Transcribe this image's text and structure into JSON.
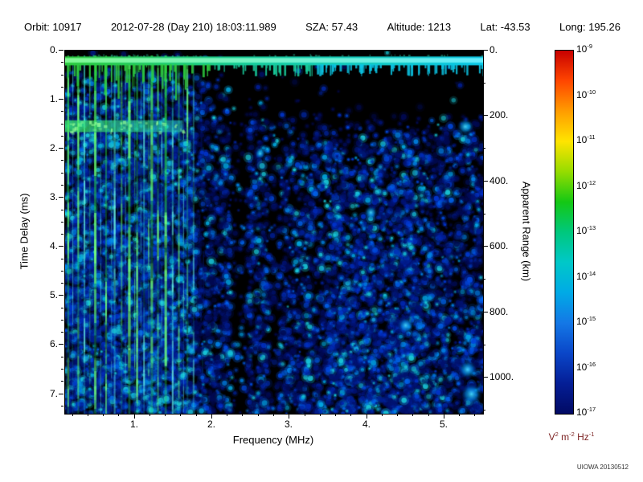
{
  "header": {
    "orbit": "Orbit:  10917",
    "datetime": "2012-07-28 (Day 210) 18:03:11.989",
    "sza": "SZA:  57.43",
    "altitude": "Altitude:   1213",
    "lat": "Lat: -43.53",
    "long": "Long: 195.26"
  },
  "credit": "UIOWA 20130512",
  "chart_data": {
    "type": "heatmap",
    "title": "",
    "description": "Radar sounder ionogram: received spectral density versus sounding frequency and echo time delay. Black background with blue noise speckle that grows denser with delay; bright green/cyan vertical ionospheric echo stripes below ~1.8 MHz; a bright horizontal surface/local-plasma band near 0.2 ms spanning all frequencies with short vertical teeth; a secondary green band near 1.5 ms below ~1.6 MHz; a quiet black region at early delays for frequencies above ~2 MHz.",
    "x_axis": {
      "label": "Frequency (MHz)",
      "min": 0.1,
      "max": 5.5,
      "major_ticks": [
        1,
        2,
        3,
        4,
        5
      ],
      "minor_tick_step": 0.2,
      "tick_suffix": "."
    },
    "y_axis": {
      "label": "Time Delay (ms)",
      "min": 0,
      "max": 7.4,
      "major_ticks": [
        0,
        1,
        2,
        3,
        4,
        5,
        6,
        7
      ],
      "minor_tick_step": 0.25,
      "tick_suffix": "."
    },
    "y2_axis": {
      "label": "Apparent Range (km)",
      "major_ticks": [
        0,
        200,
        400,
        600,
        800,
        1000
      ],
      "minor_tick_step": 100,
      "relation": "range_km = c * delay_ms / 2"
    },
    "colorbar": {
      "exponents": [
        "-9",
        "-10",
        "-11",
        "-12",
        "-13",
        "-14",
        "-15",
        "-16",
        "-17"
      ],
      "unit_parts": [
        {
          "b": "V",
          "e": "2"
        },
        {
          "b": "m",
          "e": "-2"
        },
        {
          "b": "Hz",
          "e": "-1"
        }
      ],
      "stops": [
        "#c80000",
        "#ff4600",
        "#ff9c00",
        "#ffe400",
        "#96dc00",
        "#14c814",
        "#00c87d",
        "#00c8c8",
        "#00aae6",
        "#1478e6",
        "#0a46c8",
        "#041e96",
        "#020a64"
      ]
    },
    "features": {
      "background": "#000000",
      "seed": 20130512,
      "surface_band": {
        "t0": 0.12,
        "t1": 0.3,
        "color_left": "#2ecc40",
        "color_mid": "#19ce9e",
        "color_right": "#0cc8e8",
        "core_left": "#8cff9e",
        "core_right": "#6ef0ff",
        "teeth": 155
      },
      "harmonic_band": {
        "t0": 1.42,
        "t1": 1.66,
        "f0": 0.1,
        "f1": 1.62
      },
      "stripes": [
        [
          0.14,
          2,
          0.95,
          "g"
        ],
        [
          0.2,
          1,
          0.5,
          "c"
        ],
        [
          0.27,
          2,
          0.85,
          "g"
        ],
        [
          0.35,
          2,
          0.7,
          "c"
        ],
        [
          0.42,
          1,
          0.45,
          "g"
        ],
        [
          0.49,
          3,
          0.95,
          "g"
        ],
        [
          0.56,
          1,
          0.5,
          "c"
        ],
        [
          0.63,
          2,
          0.8,
          "g"
        ],
        [
          0.7,
          1,
          0.45,
          "c"
        ],
        [
          0.74,
          2,
          0.7,
          "c"
        ],
        [
          0.83,
          2,
          0.55,
          "g"
        ],
        [
          0.88,
          1,
          0.4,
          "c"
        ],
        [
          0.93,
          3,
          0.95,
          "g"
        ],
        [
          1.0,
          1,
          0.5,
          "g"
        ],
        [
          1.03,
          2,
          0.75,
          "g"
        ],
        [
          1.08,
          1,
          0.45,
          "c"
        ],
        [
          1.12,
          2,
          0.7,
          "c"
        ],
        [
          1.18,
          1,
          0.5,
          "g"
        ],
        [
          1.22,
          3,
          0.9,
          "g"
        ],
        [
          1.3,
          2,
          0.65,
          "g"
        ],
        [
          1.35,
          1,
          0.5,
          "c"
        ],
        [
          1.4,
          3,
          1.0,
          "g"
        ],
        [
          1.49,
          2,
          0.7,
          "c"
        ],
        [
          1.57,
          2,
          0.5,
          "g"
        ],
        [
          1.63,
          1,
          0.4,
          "c"
        ],
        [
          1.68,
          2,
          0.55,
          "g"
        ],
        [
          1.76,
          2,
          0.35,
          "c"
        ]
      ],
      "noise": {
        "attempts": 16000,
        "palette": [
          "#000a52",
          "#001270",
          "#001d90",
          "#0028b0",
          "#0034cc",
          "#0047dd",
          "#0061e8",
          "#0084e8",
          "#00a8e0",
          "#19c8d8"
        ],
        "left_zone_fmax": 1.78,
        "dark_columns": [
          [
            2.35,
            0.11
          ],
          [
            2.8,
            0.07
          ]
        ],
        "bright_zone": [
          3.5,
          4.7,
          2.0
        ]
      },
      "hotspots": [
        [
          5.27,
          1.55,
          6
        ],
        [
          5.3,
          6.5,
          7
        ],
        [
          5.35,
          7.0,
          8
        ],
        [
          4.05,
          3.3,
          5
        ],
        [
          4.5,
          5.6,
          6
        ],
        [
          2.62,
          2.1,
          4
        ]
      ]
    }
  },
  "axis_titles": {
    "left": "Time Delay (ms)",
    "bottom": "Frequency (MHz)",
    "right": "Apparent Range (km)"
  }
}
